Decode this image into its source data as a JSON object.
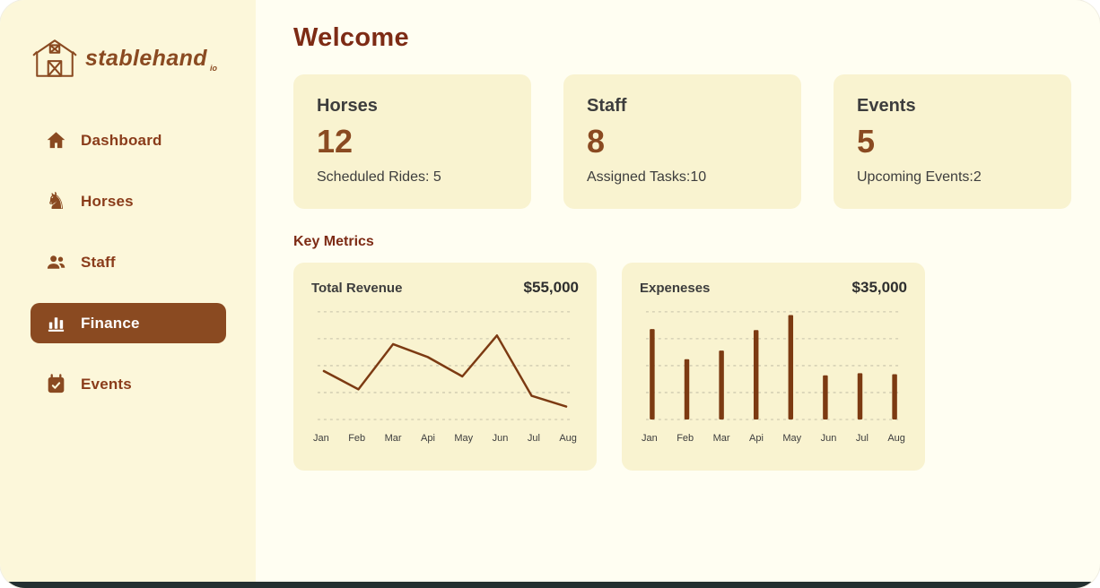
{
  "app": {
    "brand": "stablehand",
    "brand_suffix": "io"
  },
  "sidebar": {
    "items": [
      {
        "label": "Dashboard",
        "icon": "home-icon",
        "active": false
      },
      {
        "label": "Horses",
        "icon": "horse-icon",
        "active": false
      },
      {
        "label": "Staff",
        "icon": "staff-icon",
        "active": false
      },
      {
        "label": "Finance",
        "icon": "finance-chart-icon",
        "active": true
      },
      {
        "label": "Events",
        "icon": "calendar-icon",
        "active": false
      }
    ]
  },
  "header": {
    "title": "Welcome"
  },
  "stats": [
    {
      "title": "Horses",
      "value": "12",
      "subtitle": "Scheduled Rides: 5"
    },
    {
      "title": "Staff",
      "value": "8",
      "subtitle": "Assigned Tasks:10"
    },
    {
      "title": "Events",
      "value": "5",
      "subtitle": "Upcoming Events:2"
    }
  ],
  "metrics": {
    "title": "Key Metrics"
  },
  "chart_data": [
    {
      "type": "line",
      "title": "Total Revenue",
      "value_label": "$55,000",
      "categories": [
        "Jan",
        "Feb",
        "Mar",
        "Api",
        "May",
        "Jun",
        "Jul",
        "Aug"
      ],
      "values": [
        45,
        28,
        70,
        58,
        40,
        78,
        22,
        12
      ],
      "ylim": [
        0,
        100
      ],
      "grid": "dashed-horizontal",
      "legend": "none"
    },
    {
      "type": "bar",
      "title": "Expeneses",
      "value_label": "$35,000",
      "categories": [
        "Jan",
        "Feb",
        "Mar",
        "Api",
        "May",
        "Jun",
        "Jul",
        "Aug"
      ],
      "values": [
        84,
        56,
        64,
        83,
        97,
        41,
        43,
        42
      ],
      "ylim": [
        0,
        100
      ],
      "grid": "dashed-horizontal",
      "legend": "none"
    }
  ],
  "colors": {
    "accent": "#8A4A21",
    "heading": "#7D2B15",
    "nav_text": "#8A3C1A",
    "chart_stroke": "#7C3A12",
    "card_bg": "#F9F3D0",
    "sidebar_bg": "#FCF7DA",
    "main_bg": "#FFFEF2",
    "bottom_bar": "#233031"
  }
}
